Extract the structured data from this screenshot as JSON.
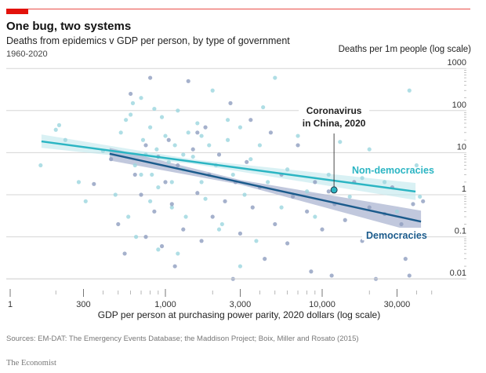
{
  "header": {
    "title": "One bug, two systems",
    "subtitle": "Deaths from epidemics v GDP per person, by type of government",
    "period": "1960-2020"
  },
  "footer": {
    "sources": "Sources: EM-DAT: The Emergency Events Database; the Maddison Project; Boix, Miller and Rosato (2015)",
    "brand": "The Economist"
  },
  "colors": {
    "accent": "#e3120b",
    "non_democracies": "#2bb5c3",
    "democracies": "#1b5b8c",
    "non_dem_points": "#9bd6de",
    "dem_points": "#8f9dbf",
    "grid": "#d6d6d6"
  },
  "chart_data": {
    "type": "scatter",
    "title": "One bug, two systems",
    "xlabel": "GDP per person at purchasing power parity, 2020 dollars (log scale)",
    "ylabel": "Deaths per 1m people (log scale)",
    "xscale": "log",
    "yscale": "log",
    "xlim": [
      100,
      60000
    ],
    "ylim": [
      0.008,
      1000
    ],
    "grid": "horizontal",
    "xticks": [
      {
        "label": "1",
        "value": null
      },
      {
        "label": "300",
        "value": 300
      },
      {
        "label": "1,000",
        "value": 1000
      },
      {
        "label": "3,000",
        "value": 3000
      },
      {
        "label": "10,000",
        "value": 10000
      },
      {
        "label": "30,000",
        "value": 30000
      }
    ],
    "xminor": [
      200,
      400,
      500,
      600,
      700,
      800,
      900,
      2000,
      4000,
      5000,
      6000,
      7000,
      8000,
      9000,
      20000,
      40000,
      50000
    ],
    "yticks": [
      {
        "label": "1000",
        "value": 1000
      },
      {
        "label": "100",
        "value": 100
      },
      {
        "label": "10",
        "value": 10
      },
      {
        "label": "1",
        "value": 1
      },
      {
        "label": "0.1",
        "value": 0.1
      },
      {
        "label": "0.01",
        "value": 0.01
      }
    ],
    "annotation": {
      "label_line1": "Coronavirus",
      "label_line2": "in China, 2020",
      "x": 11900,
      "y": 1.3
    },
    "series": [
      {
        "name": "Non-democracies",
        "fit": {
          "x": [
            162,
            39400
          ],
          "y": [
            18.5,
            1.19
          ]
        },
        "band": {
          "x": [
            162,
            1500,
            39400
          ],
          "lower": [
            13,
            5.4,
            0.75
          ],
          "upper": [
            27,
            6.9,
            1.9
          ]
        },
        "points": [
          [
            160,
            5
          ],
          [
            200,
            35
          ],
          [
            210,
            45
          ],
          [
            230,
            20
          ],
          [
            280,
            2
          ],
          [
            310,
            0.7
          ],
          [
            400,
            11
          ],
          [
            520,
            30
          ],
          [
            560,
            60
          ],
          [
            600,
            80
          ],
          [
            620,
            150
          ],
          [
            640,
            5
          ],
          [
            700,
            200
          ],
          [
            720,
            20
          ],
          [
            750,
            9
          ],
          [
            800,
            40
          ],
          [
            820,
            3
          ],
          [
            850,
            110
          ],
          [
            880,
            12
          ],
          [
            900,
            1.5
          ],
          [
            950,
            70
          ],
          [
            1000,
            25
          ],
          [
            1050,
            6
          ],
          [
            1100,
            0.5
          ],
          [
            1150,
            15
          ],
          [
            1200,
            100
          ],
          [
            1300,
            4
          ],
          [
            1350,
            0.3
          ],
          [
            1400,
            30
          ],
          [
            1500,
            8
          ],
          [
            1600,
            50
          ],
          [
            1700,
            2
          ],
          [
            1800,
            0.8
          ],
          [
            1900,
            15
          ],
          [
            2000,
            300
          ],
          [
            2100,
            5
          ],
          [
            2300,
            0.2
          ],
          [
            2500,
            20
          ],
          [
            2700,
            3
          ],
          [
            3000,
            40
          ],
          [
            3200,
            1
          ],
          [
            3500,
            7
          ],
          [
            3800,
            0.08
          ],
          [
            4000,
            15
          ],
          [
            4500,
            2
          ],
          [
            5000,
            600
          ],
          [
            5500,
            0.5
          ],
          [
            6000,
            4
          ],
          [
            7000,
            25
          ],
          [
            8000,
            1.2
          ],
          [
            9000,
            0.3
          ],
          [
            11000,
            3
          ],
          [
            13000,
            18
          ],
          [
            15000,
            0.9
          ],
          [
            18000,
            2.5
          ],
          [
            20000,
            12
          ],
          [
            25000,
            2
          ],
          [
            30000,
            0.4
          ],
          [
            36000,
            300
          ],
          [
            40000,
            5
          ],
          [
            42000,
            0.9
          ],
          [
            650,
            0.1
          ],
          [
            900,
            0.05
          ],
          [
            1200,
            0.04
          ],
          [
            2200,
            0.15
          ],
          [
            3000,
            0.02
          ],
          [
            580,
            0.3
          ],
          [
            480,
            1
          ],
          [
            1100,
            2
          ],
          [
            1300,
            9
          ],
          [
            1700,
            25
          ],
          [
            2500,
            60
          ],
          [
            4200,
            120
          ],
          [
            700,
            3
          ],
          [
            800,
            0.7
          ]
        ]
      },
      {
        "name": "Democracies",
        "fit": {
          "x": [
            441,
            42700
          ],
          "y": [
            9.4,
            0.23
          ]
        },
        "band": {
          "x": [
            441,
            3000,
            42700
          ],
          "lower": [
            6.5,
            1.75,
            0.12
          ],
          "upper": [
            13,
            2.25,
            0.42
          ]
        },
        "points": [
          [
            350,
            1.8
          ],
          [
            450,
            7
          ],
          [
            550,
            0.04
          ],
          [
            600,
            250
          ],
          [
            640,
            3
          ],
          [
            700,
            1
          ],
          [
            750,
            15
          ],
          [
            800,
            600
          ],
          [
            850,
            0.4
          ],
          [
            900,
            8
          ],
          [
            950,
            0.06
          ],
          [
            1000,
            2
          ],
          [
            1050,
            20
          ],
          [
            1100,
            0.6
          ],
          [
            1200,
            5
          ],
          [
            1300,
            0.15
          ],
          [
            1400,
            500
          ],
          [
            1500,
            12
          ],
          [
            1600,
            1.1
          ],
          [
            1700,
            0.08
          ],
          [
            1800,
            40
          ],
          [
            1900,
            3
          ],
          [
            2000,
            0.3
          ],
          [
            2200,
            9
          ],
          [
            2400,
            0.7
          ],
          [
            2600,
            150
          ],
          [
            2800,
            2
          ],
          [
            3000,
            0.12
          ],
          [
            3300,
            6
          ],
          [
            3600,
            0.5
          ],
          [
            4000,
            1.5
          ],
          [
            4300,
            0.03
          ],
          [
            4700,
            30
          ],
          [
            5000,
            0.2
          ],
          [
            5500,
            3
          ],
          [
            6000,
            0.07
          ],
          [
            6500,
            0.9
          ],
          [
            7000,
            15
          ],
          [
            8000,
            0.4
          ],
          [
            8500,
            0.015
          ],
          [
            9000,
            2
          ],
          [
            10000,
            0.15
          ],
          [
            11000,
            1.2
          ],
          [
            11500,
            0.012
          ],
          [
            12000,
            0.6
          ],
          [
            14000,
            0.25
          ],
          [
            16000,
            2
          ],
          [
            18000,
            0.08
          ],
          [
            20000,
            0.5
          ],
          [
            22000,
            0.01
          ],
          [
            25000,
            0.35
          ],
          [
            28000,
            1.5
          ],
          [
            32000,
            0.2
          ],
          [
            34000,
            0.03
          ],
          [
            36000,
            0.012
          ],
          [
            38000,
            0.6
          ],
          [
            40000,
            0.1
          ],
          [
            44000,
            0.7
          ],
          [
            1150,
            0.02
          ],
          [
            2700,
            0.01
          ],
          [
            750,
            0.1
          ],
          [
            1600,
            30
          ],
          [
            3500,
            60
          ],
          [
            500,
            0.2
          ]
        ]
      }
    ]
  }
}
